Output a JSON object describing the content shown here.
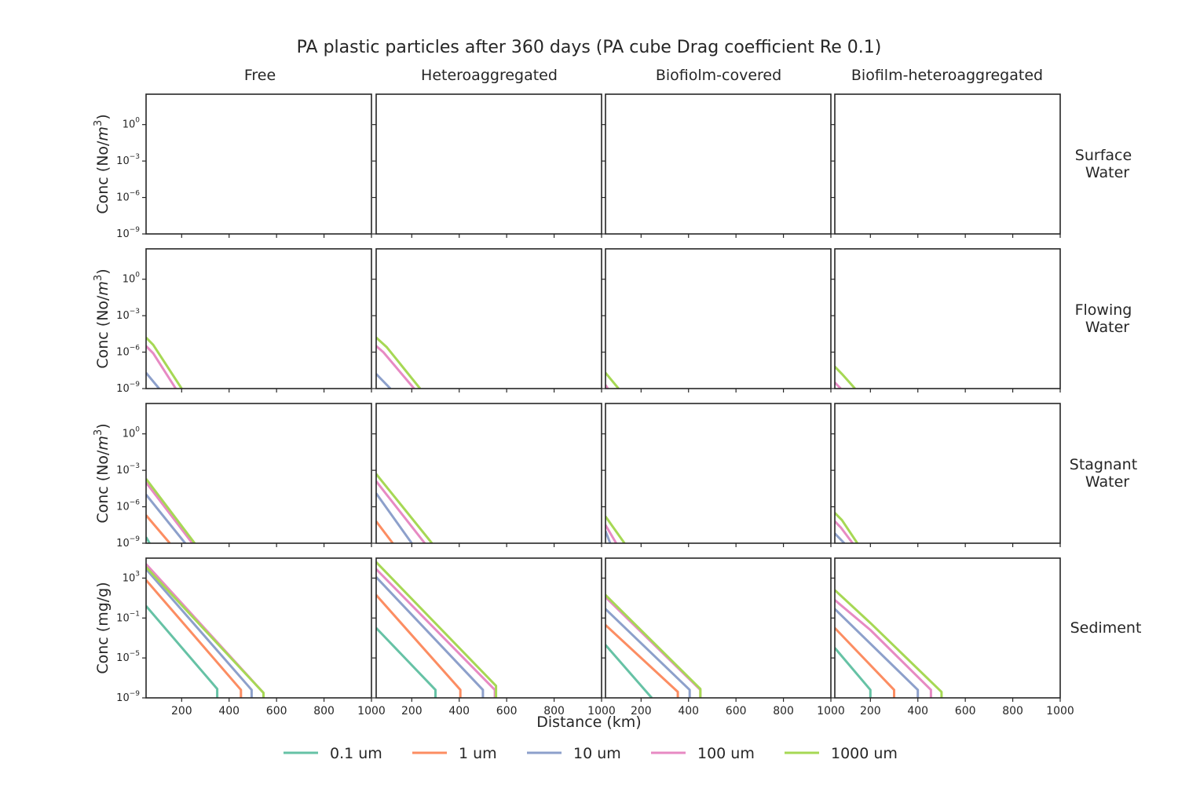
{
  "figure": {
    "title": "PA plastic particles after 360 days (PA cube Drag coefficient Re 0.1)",
    "xlabel": "Distance (km)",
    "col_titles": [
      "Free",
      "Heteroaggregated",
      "Biofiolm-covered",
      "Biofilm-heteroaggregated"
    ],
    "row_titles": [
      [
        "Surface",
        "Water"
      ],
      [
        "Flowing",
        "Water"
      ],
      [
        "Stagnant",
        "Water"
      ],
      [
        "Sediment"
      ]
    ],
    "row_ylabels": [
      {
        "pre": "Conc (No/",
        "var": "m",
        "sup": "3",
        "post": ")"
      },
      {
        "pre": "Conc (No/",
        "var": "m",
        "sup": "3",
        "post": ")"
      },
      {
        "pre": "Conc (No/",
        "var": "m",
        "sup": "3",
        "post": ")"
      },
      {
        "pre": "Conc (mg/g)",
        "var": "",
        "sup": "",
        "post": ""
      }
    ]
  },
  "chart_data": {
    "type": "line",
    "xlim": [
      50,
      1000
    ],
    "xticks": [
      200,
      400,
      600,
      800,
      1000
    ],
    "yscale": "log",
    "water_ylim_exp": [
      -9,
      2.5
    ],
    "water_yticks_exp": [
      -9,
      -6,
      -3,
      0
    ],
    "sediment_ylim_exp": [
      -9,
      5
    ],
    "sediment_yticks_exp": [
      -9,
      -5,
      -1,
      3
    ],
    "legend": {
      "placement": "bottom-center",
      "labels": [
        "0.1 um",
        "1 um",
        "10 um",
        "100 um",
        "1000 um"
      ]
    },
    "series_colors": [
      "#66c2a5",
      "#fc8d62",
      "#8da0cb",
      "#e78ac3",
      "#a6d854"
    ],
    "grid": false,
    "panels": [
      [
        {
          "series": []
        },
        {
          "series": []
        },
        {
          "series": []
        },
        {
          "series": []
        }
      ],
      [
        {
          "series": [
            {
              "idx": 2,
              "points": [
                [
                  50,
                  -7.7
                ],
                [
                  105,
                  -9
                ]
              ]
            },
            {
              "idx": 3,
              "points": [
                [
                  50,
                  -5.5
                ],
                [
                  80,
                  -6.1
                ],
                [
                  175,
                  -9
                ]
              ]
            },
            {
              "idx": 4,
              "points": [
                [
                  50,
                  -4.8
                ],
                [
                  80,
                  -5.4
                ],
                [
                  200,
                  -9
                ]
              ]
            }
          ]
        },
        {
          "series": [
            {
              "idx": 2,
              "points": [
                [
                  50,
                  -7.8
                ],
                [
                  110,
                  -9
                ]
              ]
            },
            {
              "idx": 3,
              "points": [
                [
                  50,
                  -5.5
                ],
                [
                  80,
                  -6.0
                ],
                [
                  210,
                  -9
                ]
              ]
            },
            {
              "idx": 4,
              "points": [
                [
                  50,
                  -4.8
                ],
                [
                  95,
                  -5.6
                ],
                [
                  235,
                  -9
                ]
              ]
            }
          ]
        },
        {
          "series": [
            {
              "idx": 3,
              "points": [
                [
                  50,
                  -8.7
                ],
                [
                  60,
                  -9
                ]
              ]
            },
            {
              "idx": 4,
              "points": [
                [
                  50,
                  -7.7
                ],
                [
                  105,
                  -9
                ]
              ]
            }
          ]
        },
        {
          "series": [
            {
              "idx": 3,
              "points": [
                [
                  50,
                  -8.5
                ],
                [
                  75,
                  -9
                ]
              ]
            },
            {
              "idx": 4,
              "points": [
                [
                  50,
                  -7.2
                ],
                [
                  80,
                  -7.8
                ],
                [
                  135,
                  -9
                ]
              ]
            }
          ]
        }
      ],
      [
        {
          "series": [
            {
              "idx": 0,
              "points": [
                [
                  50,
                  -8.5
                ],
                [
                  65,
                  -9
                ]
              ]
            },
            {
              "idx": 1,
              "points": [
                [
                  50,
                  -6.7
                ],
                [
                  150,
                  -9
                ]
              ]
            },
            {
              "idx": 2,
              "points": [
                [
                  50,
                  -5.0
                ],
                [
                  215,
                  -9
                ]
              ]
            },
            {
              "idx": 3,
              "points": [
                [
                  50,
                  -4.0
                ],
                [
                  245,
                  -9
                ]
              ]
            },
            {
              "idx": 4,
              "points": [
                [
                  50,
                  -3.7
                ],
                [
                  255,
                  -9
                ]
              ]
            }
          ]
        },
        {
          "series": [
            {
              "idx": 1,
              "points": [
                [
                  50,
                  -7.2
                ],
                [
                  120,
                  -9
                ]
              ]
            },
            {
              "idx": 2,
              "points": [
                [
                  50,
                  -4.9
                ],
                [
                  200,
                  -9
                ]
              ]
            },
            {
              "idx": 3,
              "points": [
                [
                  50,
                  -3.9
                ],
                [
                  255,
                  -9
                ]
              ]
            },
            {
              "idx": 4,
              "points": [
                [
                  50,
                  -3.3
                ],
                [
                  285,
                  -9
                ]
              ]
            }
          ]
        },
        {
          "series": [
            {
              "idx": 2,
              "points": [
                [
                  50,
                  -8.0
                ],
                [
                  70,
                  -9
                ]
              ]
            },
            {
              "idx": 3,
              "points": [
                [
                  50,
                  -7.5
                ],
                [
                  95,
                  -9
                ]
              ]
            },
            {
              "idx": 4,
              "points": [
                [
                  50,
                  -6.8
                ],
                [
                  130,
                  -9
                ]
              ]
            }
          ]
        },
        {
          "series": [
            {
              "idx": 2,
              "points": [
                [
                  50,
                  -8.2
                ],
                [
                  90,
                  -9
                ]
              ]
            },
            {
              "idx": 3,
              "points": [
                [
                  50,
                  -7.2
                ],
                [
                  75,
                  -7.7
                ],
                [
                  125,
                  -9
                ]
              ]
            },
            {
              "idx": 4,
              "points": [
                [
                  50,
                  -6.5
                ],
                [
                  80,
                  -7.1
                ],
                [
                  145,
                  -9
                ]
              ]
            }
          ]
        }
      ],
      [
        {
          "series": [
            {
              "idx": 0,
              "points": [
                [
                  50,
                  0.2
                ],
                [
                  350,
                  -8.1
                ],
                [
                  350,
                  -9
                ]
              ]
            },
            {
              "idx": 1,
              "points": [
                [
                  50,
                  2.8
                ],
                [
                  450,
                  -8.2
                ],
                [
                  450,
                  -9
                ]
              ]
            },
            {
              "idx": 2,
              "points": [
                [
                  50,
                  3.9
                ],
                [
                  495,
                  -8.2
                ],
                [
                  495,
                  -9
                ]
              ]
            },
            {
              "idx": 3,
              "points": [
                [
                  50,
                  4.4
                ],
                [
                  545,
                  -8.5
                ],
                [
                  545,
                  -9
                ]
              ]
            },
            {
              "idx": 4,
              "points": [
                [
                  50,
                  4.1
                ],
                [
                  545,
                  -8.5
                ],
                [
                  545,
                  -9
                ]
              ]
            }
          ]
        },
        {
          "series": [
            {
              "idx": 0,
              "points": [
                [
                  50,
                  -2.0
                ],
                [
                  300,
                  -8.2
                ],
                [
                  300,
                  -9
                ]
              ]
            },
            {
              "idx": 1,
              "points": [
                [
                  50,
                  1.3
                ],
                [
                  405,
                  -8.2
                ],
                [
                  405,
                  -9
                ]
              ]
            },
            {
              "idx": 2,
              "points": [
                [
                  50,
                  3.1
                ],
                [
                  500,
                  -8.2
                ],
                [
                  500,
                  -9
                ]
              ]
            },
            {
              "idx": 3,
              "points": [
                [
                  50,
                  3.9
                ],
                [
                  550,
                  -8.2
                ],
                [
                  550,
                  -9
                ]
              ]
            },
            {
              "idx": 4,
              "points": [
                [
                  50,
                  4.6
                ],
                [
                  555,
                  -7.8
                ],
                [
                  555,
                  -9
                ]
              ]
            }
          ]
        },
        {
          "series": [
            {
              "idx": 0,
              "points": [
                [
                  50,
                  -3.7
                ],
                [
                  245,
                  -9
                ]
              ]
            },
            {
              "idx": 1,
              "points": [
                [
                  50,
                  -1.7
                ],
                [
                  355,
                  -8.4
                ],
                [
                  355,
                  -9
                ]
              ]
            },
            {
              "idx": 2,
              "points": [
                [
                  50,
                  -0.1
                ],
                [
                  405,
                  -8.2
                ],
                [
                  405,
                  -9
                ]
              ]
            },
            {
              "idx": 3,
              "points": [
                [
                  50,
                  1.1
                ],
                [
                  450,
                  -8.2
                ],
                [
                  450,
                  -9
                ]
              ]
            },
            {
              "idx": 4,
              "points": [
                [
                  50,
                  1.3
                ],
                [
                  450,
                  -8.1
                ],
                [
                  450,
                  -9
                ]
              ]
            }
          ]
        },
        {
          "series": [
            {
              "idx": 0,
              "points": [
                [
                  50,
                  -4.0
                ],
                [
                  200,
                  -8.2
                ],
                [
                  200,
                  -9
                ]
              ]
            },
            {
              "idx": 1,
              "points": [
                [
                  50,
                  -2.0
                ],
                [
                  300,
                  -8.2
                ],
                [
                  300,
                  -9
                ]
              ]
            },
            {
              "idx": 2,
              "points": [
                [
                  50,
                  -0.1
                ],
                [
                  400,
                  -8.2
                ],
                [
                  400,
                  -9
                ]
              ]
            },
            {
              "idx": 3,
              "points": [
                [
                  50,
                  0.8
                ],
                [
                  200,
                  -2.2
                ],
                [
                  455,
                  -8.2
                ],
                [
                  455,
                  -9
                ]
              ]
            },
            {
              "idx": 4,
              "points": [
                [
                  50,
                  1.8
                ],
                [
                  200,
                  -1.5
                ],
                [
                  500,
                  -8.4
                ],
                [
                  500,
                  -9
                ]
              ]
            }
          ]
        }
      ]
    ]
  }
}
